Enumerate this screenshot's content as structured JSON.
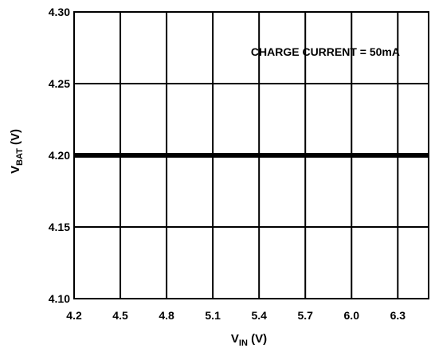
{
  "chart_data": {
    "type": "line",
    "title": "",
    "xlabel": {
      "main": "V",
      "sub": "IN",
      "unit": " (V)"
    },
    "ylabel": {
      "main": "V",
      "sub": "BAT",
      "unit": " (V)"
    },
    "xlim": [
      4.2,
      6.5
    ],
    "ylim": [
      4.1,
      4.3
    ],
    "x_ticks": [
      "4.2",
      "4.5",
      "4.8",
      "5.1",
      "5.4",
      "5.7",
      "6.0",
      "6.3"
    ],
    "y_ticks": [
      "4.10",
      "4.15",
      "4.20",
      "4.25",
      "4.30"
    ],
    "grid": true,
    "annotation": "CHARGE CURRENT = 50mA",
    "series": [
      {
        "x": [
          4.2,
          6.5
        ],
        "y": [
          4.2,
          4.2
        ]
      }
    ]
  }
}
